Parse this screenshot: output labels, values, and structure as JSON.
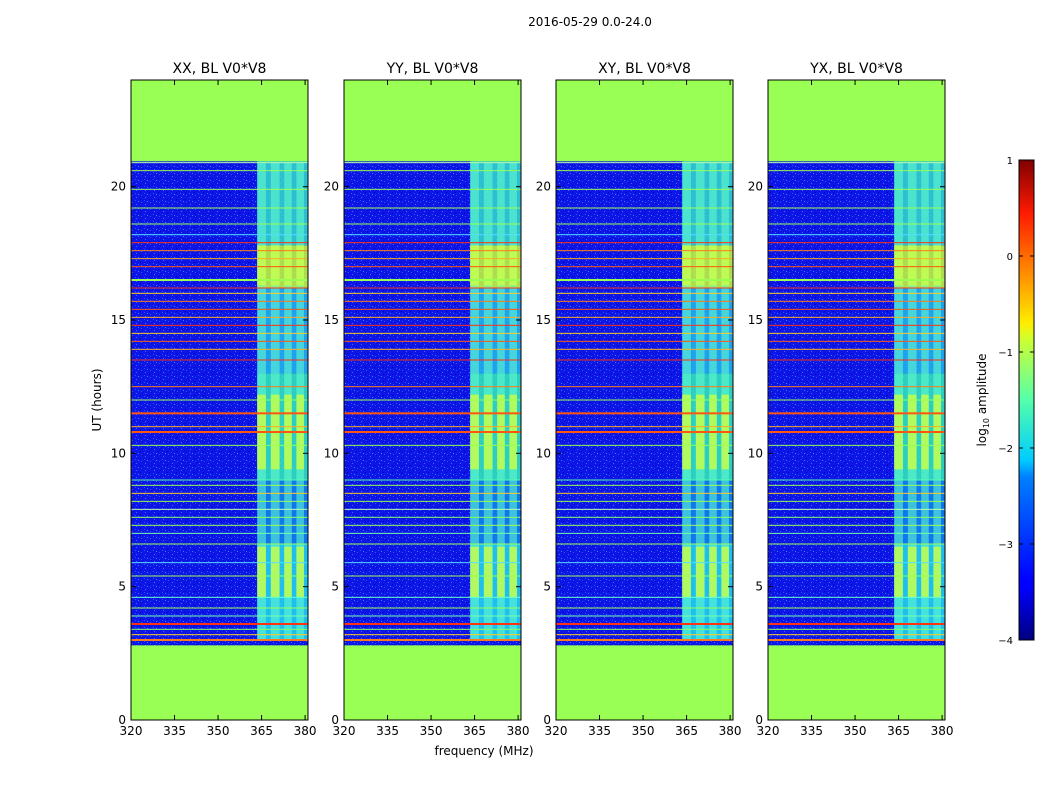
{
  "figure": {
    "title": "2016-05-29 0.0-24.0"
  },
  "chart_data": {
    "type": "heatmap",
    "xlabel": "frequency (MHz)",
    "ylabel": "UT (hours)",
    "xlim": [
      320,
      381
    ],
    "ylim": [
      0,
      24
    ],
    "xticks": [
      "320",
      "335",
      "350",
      "365",
      "380"
    ],
    "yticks": [
      "0",
      "5",
      "10",
      "15",
      "20"
    ],
    "flagged_hours": [
      [
        0,
        2.8
      ],
      [
        20.95,
        24
      ]
    ],
    "rfi_band_mhz": [
      363.5,
      381
    ],
    "panels": [
      {
        "title": "XX, BL V0*V8"
      },
      {
        "title": "YY, BL V0*V8"
      },
      {
        "title": "XY, BL V0*V8"
      },
      {
        "title": "YX, BL V0*V8"
      }
    ],
    "colorbar": {
      "label_main": "log",
      "label_sub": "10",
      "label_tail": " amplitude",
      "range": [
        -4,
        1
      ],
      "ticks": [
        "−4",
        "−3",
        "−2",
        "−1",
        "0",
        "1"
      ],
      "colormap": "jet",
      "flag_color": "#99ff55"
    }
  }
}
